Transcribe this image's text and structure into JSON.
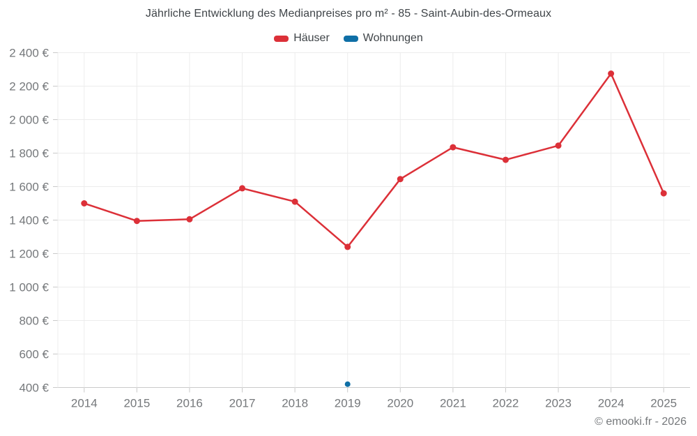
{
  "page": {
    "title": "Jährliche Entwicklung des Medianpreises pro m² - 85 - Saint-Aubin-des-Ormeaux",
    "copyright": "© emooki.fr - 2026"
  },
  "legend": {
    "items": [
      {
        "label": "Häuser",
        "color": "#dc3038",
        "slug": "haeuser"
      },
      {
        "label": "Wohnungen",
        "color": "#0f6fa6",
        "slug": "wohnungen"
      }
    ]
  },
  "colors": {
    "grid": "#ececec",
    "axis": "#c9c9c9",
    "tick_text": "#75787b",
    "title_text": "#3f4448",
    "haeuser_red": "#dc3038",
    "wohnungen_blue": "#0f6fa6"
  },
  "chart_data": {
    "type": "line",
    "title": "Jährliche Entwicklung des Medianpreises pro m² - 85 - Saint-Aubin-des-Ormeaux",
    "xlabel": "",
    "ylabel": "",
    "y_unit": "€",
    "categories": [
      "2014",
      "2015",
      "2016",
      "2017",
      "2018",
      "2019",
      "2020",
      "2021",
      "2022",
      "2023",
      "2024",
      "2025"
    ],
    "series": [
      {
        "name": "Häuser",
        "slug": "haeuser",
        "color": "#dc3038",
        "marker_radius": 4.5,
        "values": [
          1500,
          1395,
          1405,
          1590,
          1510,
          1240,
          1645,
          1835,
          1760,
          1845,
          2275,
          1560
        ]
      },
      {
        "name": "Wohnungen",
        "slug": "wohnungen",
        "color": "#0f6fa6",
        "marker_radius": 4,
        "values": [
          null,
          null,
          null,
          null,
          null,
          420,
          null,
          null,
          null,
          null,
          null,
          null
        ]
      }
    ],
    "ylim": [
      400,
      2400
    ],
    "y_ticks": [
      400,
      600,
      800,
      1000,
      1200,
      1400,
      1600,
      1800,
      2000,
      2200,
      2400
    ],
    "y_tick_labels": [
      "400 €",
      "600 €",
      "800 €",
      "1 000 €",
      "1 200 €",
      "1 400 €",
      "1 600 €",
      "1 800 €",
      "2 000 €",
      "2 200 €",
      "2 400 €"
    ],
    "grid": true,
    "legend_position": "top"
  }
}
